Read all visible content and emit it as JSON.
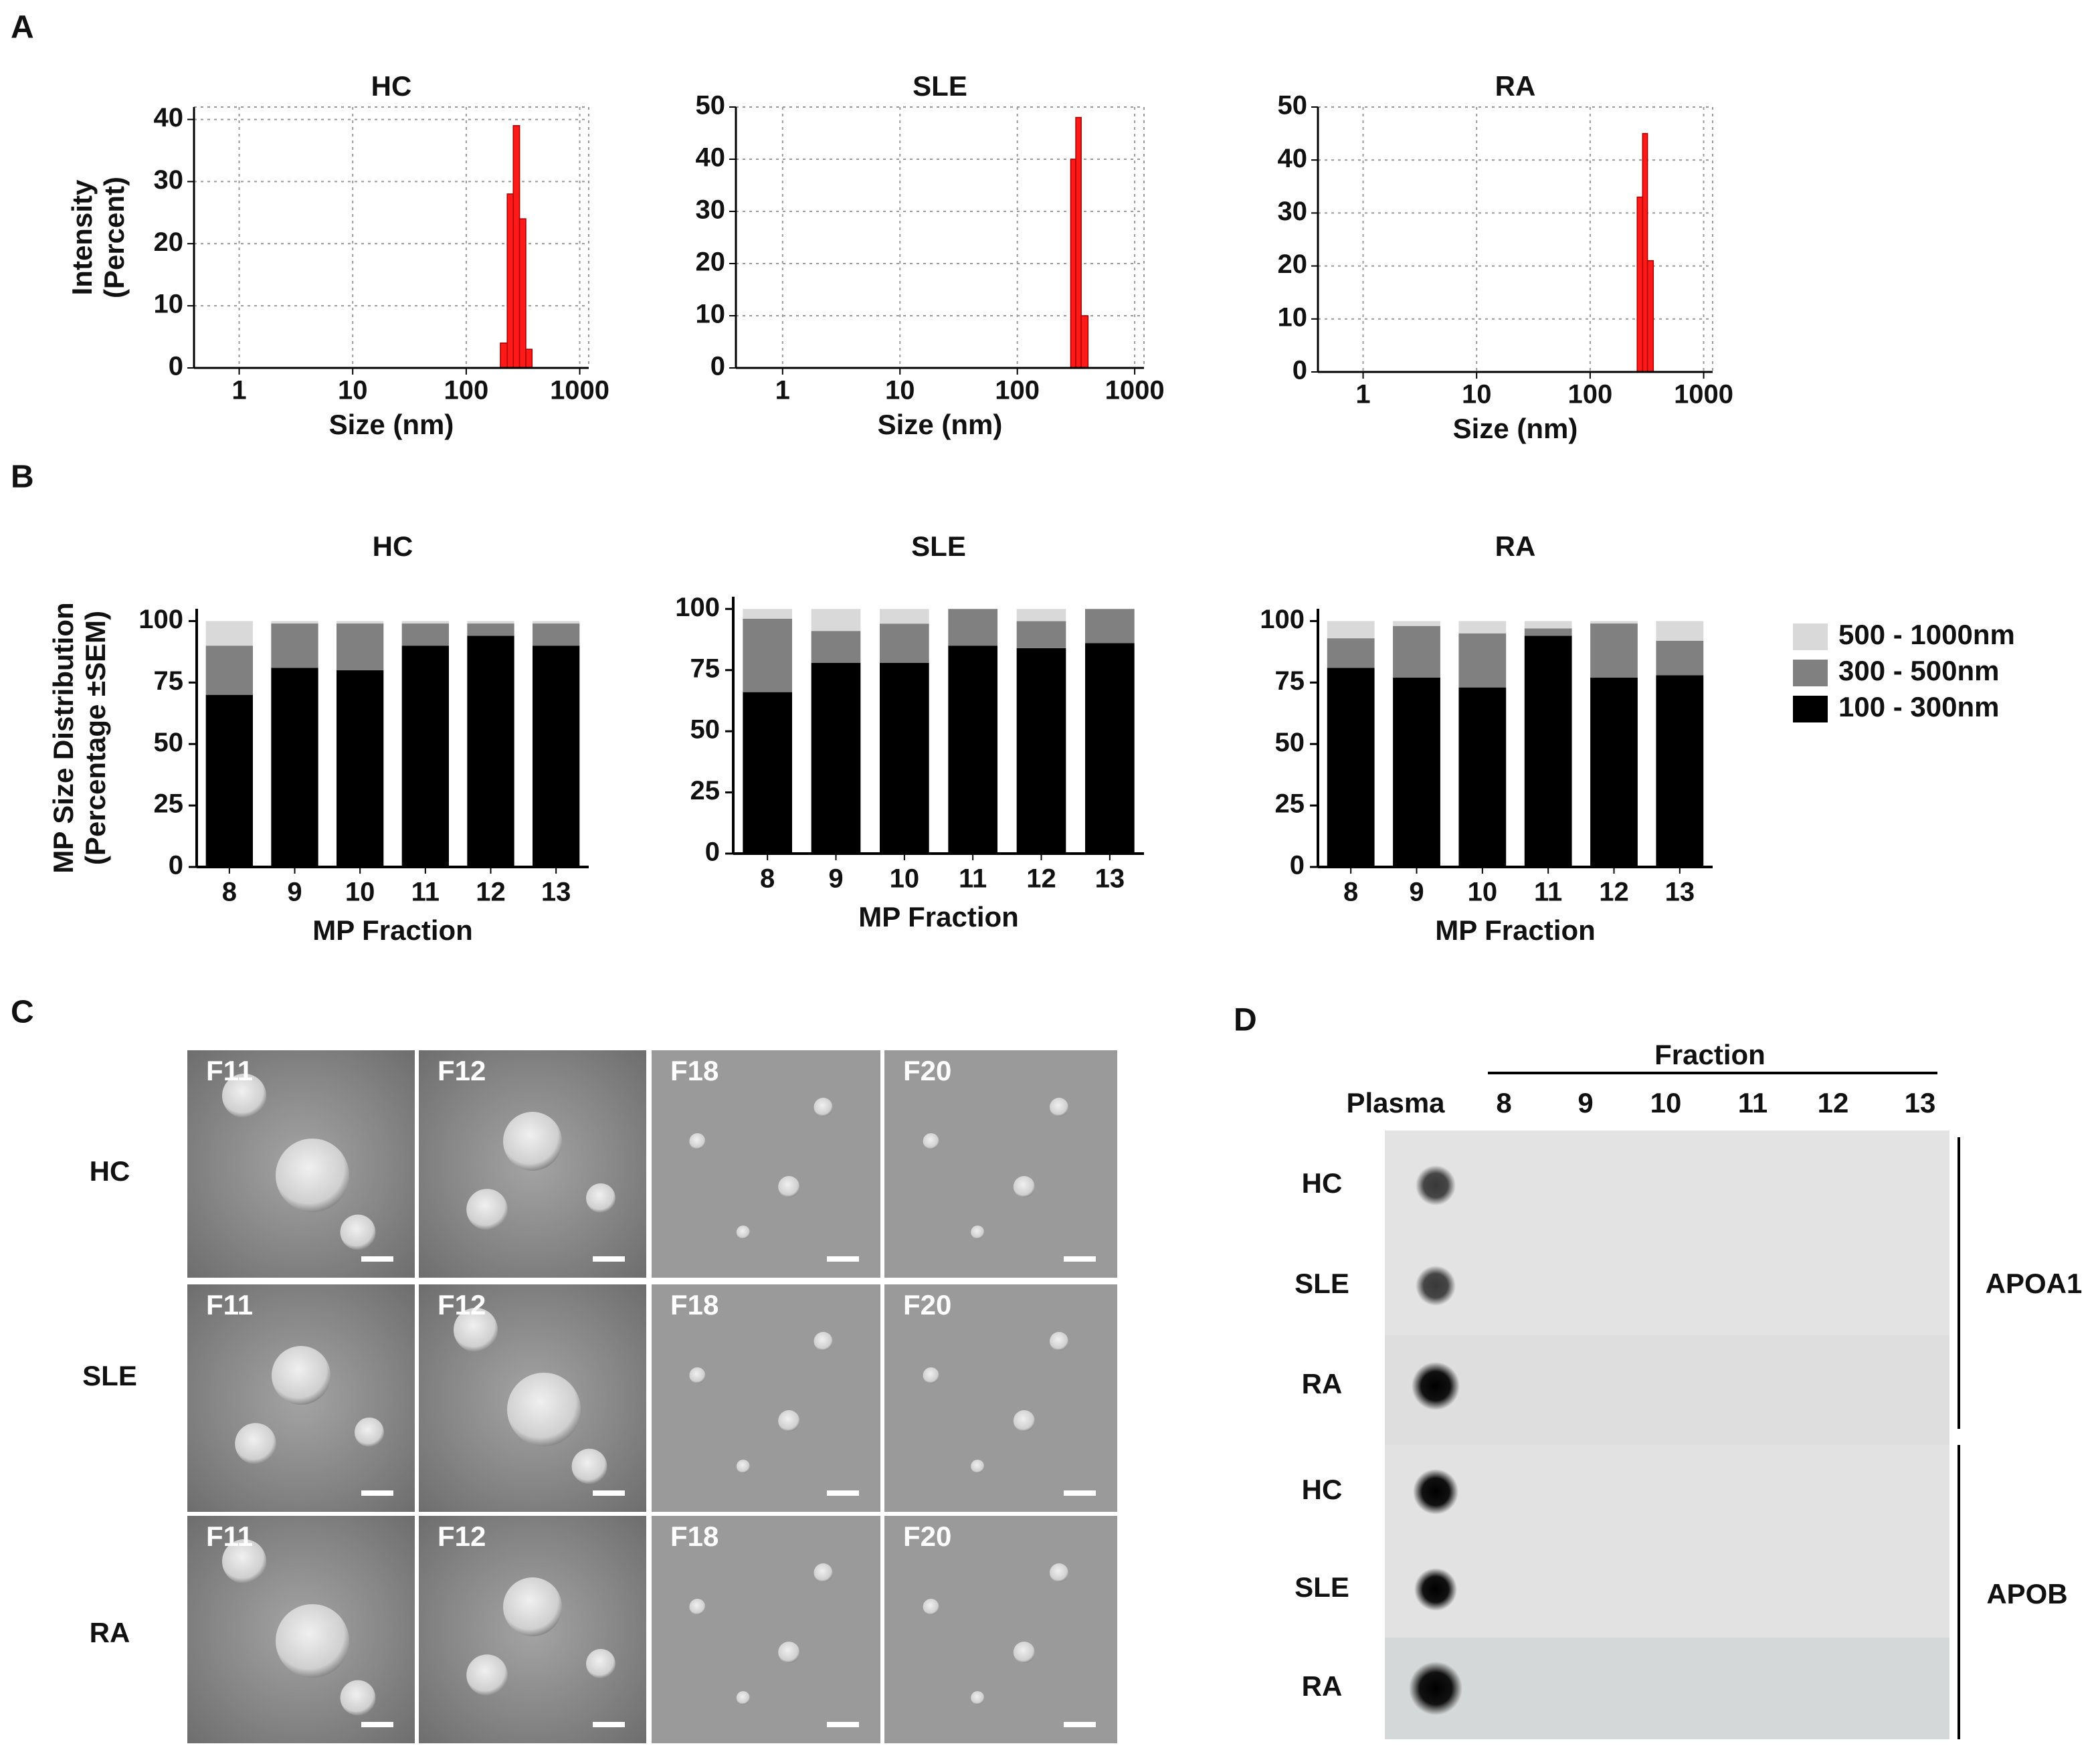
{
  "panel_labels": [
    "A",
    "B",
    "C",
    "D"
  ],
  "chart_data": [
    {
      "type": "histogram",
      "title": "HC",
      "x_label": "Size (nm)",
      "y_label": [
        "Intensity",
        "(Percent)"
      ],
      "log_x": true,
      "xlim": [
        0.4,
        1200
      ],
      "xticks": [
        1,
        10,
        100,
        1000
      ],
      "ylim": [
        0,
        42
      ],
      "yticks": [
        0,
        10,
        20,
        30,
        40
      ],
      "grid": true,
      "color": "#ff1a1a",
      "bins": [
        200,
        230,
        260,
        295,
        335,
        380
      ],
      "counts": [
        4,
        28,
        39,
        24,
        3
      ]
    },
    {
      "type": "histogram",
      "title": "SLE",
      "x_label": "Size (nm)",
      "log_x": true,
      "xlim": [
        0.4,
        1200
      ],
      "xticks": [
        1,
        10,
        100,
        1000
      ],
      "ylim": [
        0,
        50
      ],
      "yticks": [
        0,
        10,
        20,
        30,
        40,
        50
      ],
      "grid": true,
      "color": "#ff1a1a",
      "bins": [
        285,
        315,
        350,
        400
      ],
      "counts": [
        40,
        48,
        10
      ]
    },
    {
      "type": "histogram",
      "title": "RA",
      "x_label": "Size (nm)",
      "log_x": true,
      "xlim": [
        0.4,
        1200
      ],
      "xticks": [
        1,
        10,
        100,
        1000
      ],
      "ylim": [
        0,
        50
      ],
      "yticks": [
        0,
        10,
        20,
        30,
        40,
        50
      ],
      "grid": true,
      "color": "#ff1a1a",
      "bins": [
        260,
        290,
        320,
        360
      ],
      "counts": [
        33,
        45,
        21
      ]
    },
    {
      "type": "stacked_bar",
      "title": "HC",
      "x_label": "MP Fraction",
      "y_label": [
        "MP Size Distribution",
        "(Percentage ±SEM)"
      ],
      "categories": [
        "8",
        "9",
        "10",
        "11",
        "12",
        "13"
      ],
      "ylim": [
        0,
        105
      ],
      "yticks": [
        0,
        25,
        50,
        75,
        100
      ],
      "series": [
        {
          "color": "#000000",
          "values": [
            70,
            81,
            80,
            90,
            94,
            90
          ]
        },
        {
          "color": "#808080",
          "values": [
            20,
            18,
            19,
            9,
            5,
            9
          ]
        },
        {
          "color": "#d9d9d9",
          "values": [
            10,
            1,
            1,
            1,
            1,
            1
          ]
        }
      ]
    },
    {
      "type": "stacked_bar",
      "title": "SLE",
      "x_label": "MP Fraction",
      "categories": [
        "8",
        "9",
        "10",
        "11",
        "12",
        "13"
      ],
      "ylim": [
        0,
        105
      ],
      "yticks": [
        0,
        25,
        50,
        75,
        100
      ],
      "series": [
        {
          "color": "#000000",
          "values": [
            66,
            78,
            78,
            85,
            84,
            86
          ]
        },
        {
          "color": "#808080",
          "values": [
            30,
            13,
            16,
            15,
            11,
            14
          ]
        },
        {
          "color": "#d9d9d9",
          "values": [
            4,
            9,
            6,
            0,
            5,
            0
          ]
        }
      ]
    },
    {
      "type": "stacked_bar",
      "title": "RA",
      "x_label": "MP Fraction",
      "categories": [
        "8",
        "9",
        "10",
        "11",
        "12",
        "13"
      ],
      "ylim": [
        0,
        105
      ],
      "yticks": [
        0,
        25,
        50,
        75,
        100
      ],
      "legend": "right",
      "series": [
        {
          "name": "100 - 300nm",
          "color": "#000000",
          "values": [
            81,
            77,
            73,
            94,
            77,
            78
          ]
        },
        {
          "name": "300 - 500nm",
          "color": "#808080",
          "values": [
            12,
            21,
            22,
            3,
            22,
            14
          ]
        },
        {
          "name": "500 - 1000nm",
          "color": "#d9d9d9",
          "values": [
            7,
            2,
            5,
            3,
            1,
            8
          ]
        }
      ]
    }
  ],
  "panel_c": {
    "rows": [
      {
        "label": "HC",
        "images": [
          "F11",
          "F12",
          "F18",
          "F20"
        ]
      },
      {
        "label": "SLE",
        "images": [
          "F11",
          "F12",
          "F18",
          "F20"
        ]
      },
      {
        "label": "RA",
        "images": [
          "F11",
          "F12",
          "F18",
          "F20"
        ]
      }
    ]
  },
  "panel_d": {
    "header": "Fraction",
    "first_column": "Plasma",
    "columns": [
      "8",
      "9",
      "10",
      "11",
      "12",
      "13"
    ],
    "rows": [
      "HC",
      "SLE",
      "RA",
      "HC",
      "SLE",
      "RA"
    ],
    "groups": [
      "APOA1",
      "APOB"
    ]
  }
}
